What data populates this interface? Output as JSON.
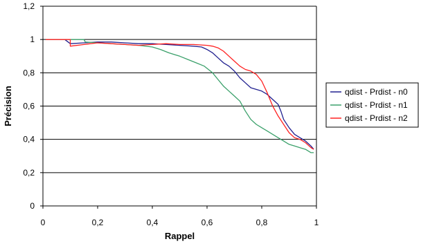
{
  "chart_data": {
    "type": "line",
    "xlabel": "Rappel",
    "ylabel": "Précision",
    "xlim": [
      0,
      1
    ],
    "ylim": [
      0,
      1.2
    ],
    "x_ticks": [
      "0",
      "0,2",
      "0,4",
      "0,6",
      "0,8",
      "1"
    ],
    "y_ticks": [
      "0",
      "0,2",
      "0,4",
      "0,6",
      "0,8",
      "1",
      "1,2"
    ],
    "grid": "horizontal",
    "legend_position": "right",
    "series": [
      {
        "name": "qdist - Prdist - n0",
        "color": "#1f1f8f",
        "points": [
          [
            0.01,
            1.0
          ],
          [
            0.08,
            1.0
          ],
          [
            0.1,
            0.975
          ],
          [
            0.15,
            0.98
          ],
          [
            0.2,
            0.985
          ],
          [
            0.25,
            0.985
          ],
          [
            0.3,
            0.98
          ],
          [
            0.35,
            0.975
          ],
          [
            0.4,
            0.975
          ],
          [
            0.45,
            0.97
          ],
          [
            0.5,
            0.965
          ],
          [
            0.55,
            0.96
          ],
          [
            0.58,
            0.955
          ],
          [
            0.6,
            0.94
          ],
          [
            0.62,
            0.92
          ],
          [
            0.64,
            0.89
          ],
          [
            0.66,
            0.86
          ],
          [
            0.68,
            0.84
          ],
          [
            0.7,
            0.81
          ],
          [
            0.72,
            0.77
          ],
          [
            0.74,
            0.74
          ],
          [
            0.76,
            0.71
          ],
          [
            0.78,
            0.7
          ],
          [
            0.8,
            0.69
          ],
          [
            0.82,
            0.67
          ],
          [
            0.84,
            0.64
          ],
          [
            0.86,
            0.61
          ],
          [
            0.87,
            0.57
          ],
          [
            0.88,
            0.52
          ],
          [
            0.9,
            0.47
          ],
          [
            0.92,
            0.43
          ],
          [
            0.94,
            0.41
          ],
          [
            0.96,
            0.39
          ],
          [
            0.98,
            0.36
          ],
          [
            0.99,
            0.34
          ]
        ]
      },
      {
        "name": "qdist - Prdist - n1",
        "color": "#3aa06a",
        "points": [
          [
            0.01,
            1.0
          ],
          [
            0.1,
            1.0
          ],
          [
            0.15,
            1.0
          ],
          [
            0.155,
            0.985
          ],
          [
            0.2,
            0.98
          ],
          [
            0.25,
            0.975
          ],
          [
            0.3,
            0.97
          ],
          [
            0.35,
            0.965
          ],
          [
            0.4,
            0.955
          ],
          [
            0.43,
            0.94
          ],
          [
            0.46,
            0.92
          ],
          [
            0.5,
            0.9
          ],
          [
            0.53,
            0.88
          ],
          [
            0.56,
            0.86
          ],
          [
            0.59,
            0.84
          ],
          [
            0.62,
            0.8
          ],
          [
            0.64,
            0.76
          ],
          [
            0.66,
            0.72
          ],
          [
            0.68,
            0.69
          ],
          [
            0.7,
            0.66
          ],
          [
            0.72,
            0.63
          ],
          [
            0.74,
            0.57
          ],
          [
            0.76,
            0.52
          ],
          [
            0.78,
            0.49
          ],
          [
            0.8,
            0.47
          ],
          [
            0.82,
            0.45
          ],
          [
            0.84,
            0.43
          ],
          [
            0.86,
            0.41
          ],
          [
            0.88,
            0.39
          ],
          [
            0.9,
            0.37
          ],
          [
            0.92,
            0.36
          ],
          [
            0.94,
            0.35
          ],
          [
            0.96,
            0.34
          ],
          [
            0.98,
            0.32
          ],
          [
            0.99,
            0.32
          ]
        ]
      },
      {
        "name": "qdist - Prdist - n2",
        "color": "#ff2020",
        "points": [
          [
            0.01,
            1.0
          ],
          [
            0.1,
            1.0
          ],
          [
            0.1,
            0.96
          ],
          [
            0.15,
            0.97
          ],
          [
            0.2,
            0.98
          ],
          [
            0.25,
            0.975
          ],
          [
            0.3,
            0.97
          ],
          [
            0.35,
            0.965
          ],
          [
            0.4,
            0.97
          ],
          [
            0.45,
            0.975
          ],
          [
            0.5,
            0.97
          ],
          [
            0.55,
            0.97
          ],
          [
            0.6,
            0.965
          ],
          [
            0.62,
            0.96
          ],
          [
            0.64,
            0.95
          ],
          [
            0.66,
            0.93
          ],
          [
            0.68,
            0.9
          ],
          [
            0.7,
            0.87
          ],
          [
            0.72,
            0.84
          ],
          [
            0.74,
            0.82
          ],
          [
            0.76,
            0.81
          ],
          [
            0.78,
            0.79
          ],
          [
            0.8,
            0.75
          ],
          [
            0.82,
            0.68
          ],
          [
            0.84,
            0.6
          ],
          [
            0.86,
            0.54
          ],
          [
            0.88,
            0.49
          ],
          [
            0.9,
            0.44
          ],
          [
            0.92,
            0.41
          ],
          [
            0.94,
            0.4
          ],
          [
            0.96,
            0.38
          ],
          [
            0.98,
            0.35
          ],
          [
            0.99,
            0.34
          ]
        ]
      }
    ]
  }
}
